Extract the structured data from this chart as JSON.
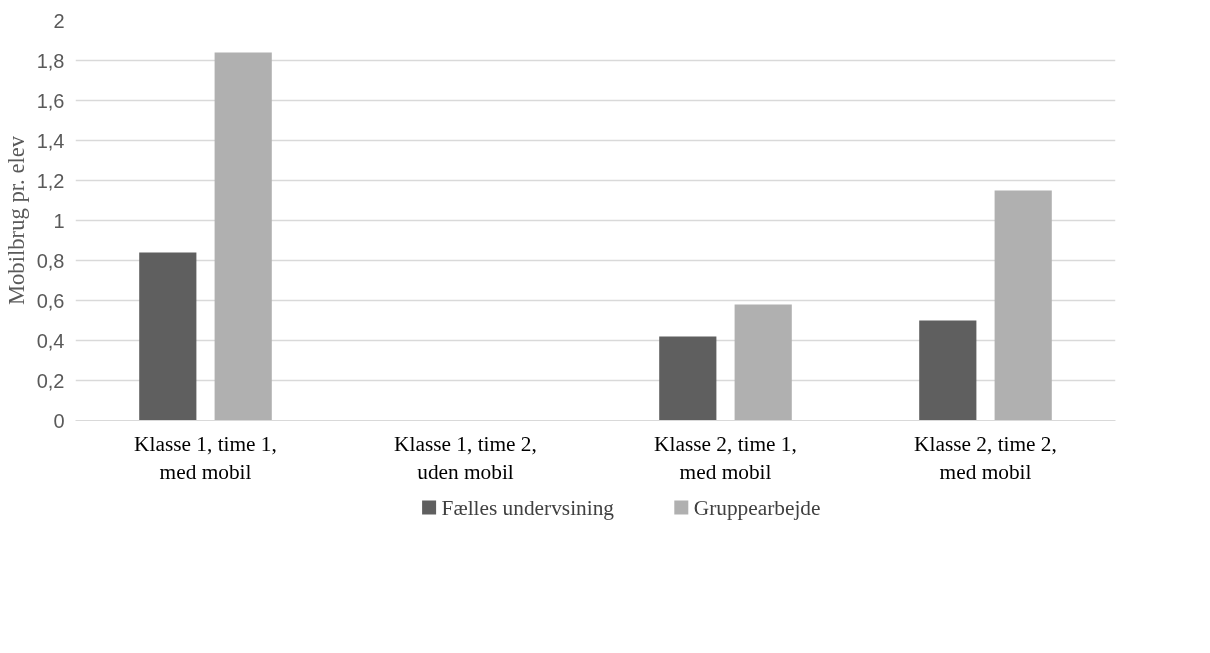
{
  "chart_data": {
    "type": "bar",
    "ylabel": "Mobilbrug pr. elev",
    "categories": [
      "Klasse 1, time 1, med mobil",
      "Klasse 1, time 2, uden mobil",
      "Klasse 2, time 1, med mobil",
      "Klasse 2, time 2, med mobil"
    ],
    "series": [
      {
        "name": "Fælles undervsining",
        "color": "#5f5f5f",
        "values": [
          0.84,
          0,
          0.42,
          0.5
        ]
      },
      {
        "name": "Gruppearbejde",
        "color": "#b0b0b0",
        "values": [
          1.84,
          0,
          0.58,
          1.15
        ]
      }
    ],
    "ylim": [
      0,
      2
    ],
    "yticks": [
      {
        "value": 0,
        "label": "0"
      },
      {
        "value": 0.2,
        "label": "0,2"
      },
      {
        "value": 0.4,
        "label": "0,4"
      },
      {
        "value": 0.6,
        "label": "0,6"
      },
      {
        "value": 0.8,
        "label": "0,8"
      },
      {
        "value": 1,
        "label": "1"
      },
      {
        "value": 1.2,
        "label": "1,2"
      },
      {
        "value": 1.4,
        "label": "1,4"
      },
      {
        "value": 1.6,
        "label": "1,6"
      },
      {
        "value": 1.8,
        "label": "1,8"
      },
      {
        "value": 2,
        "label": "2"
      }
    ],
    "grid": "y",
    "legend": "bottom"
  }
}
